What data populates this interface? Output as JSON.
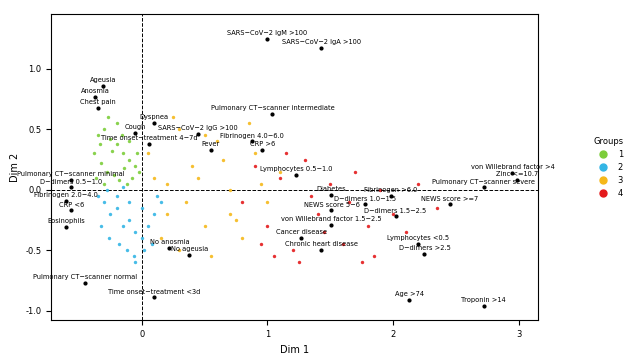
{
  "chart_data": {
    "type": "scatter",
    "x_label": "Dim 1",
    "y_label": "Dim 2",
    "xlim": [
      -0.72,
      3.15
    ],
    "ylim": [
      -1.08,
      1.45
    ],
    "xticks": [
      0,
      1,
      2,
      3
    ],
    "yticks": [
      {
        "value": -1.0,
        "label": "-1.0"
      },
      {
        "value": -0.5,
        "label": "-0.5"
      },
      {
        "value": 0.0,
        "label": "0.0"
      },
      {
        "value": 0.5,
        "label": "0.5"
      },
      {
        "value": 1.0,
        "label": "1.0"
      }
    ],
    "grid": false,
    "legend": "right",
    "legend_title": "Groups",
    "ref_lines": {
      "x": 0,
      "y": 0
    },
    "series": [
      {
        "name": "1",
        "color": "#7CCD3A",
        "x": [
          -0.35,
          -0.3,
          -0.25,
          -0.2,
          -0.15,
          -0.1,
          -0.05,
          -0.38,
          -0.32,
          -0.28,
          -0.22,
          -0.18,
          -0.12,
          -0.08,
          -0.02,
          -0.36,
          -0.3,
          -0.24,
          -0.16,
          -0.1,
          -0.04,
          -0.27,
          -0.2,
          -0.14,
          -0.33
        ],
        "y": [
          0.45,
          0.5,
          0.42,
          0.38,
          0.3,
          0.25,
          0.2,
          0.3,
          0.22,
          0.15,
          0.12,
          0.08,
          0.05,
          0.1,
          0.15,
          0.1,
          0.05,
          0.32,
          0.45,
          0.4,
          0.3,
          0.6,
          0.55,
          0.18,
          0.38
        ]
      },
      {
        "name": "2",
        "color": "#33B5E5",
        "x": [
          -0.35,
          -0.3,
          -0.25,
          -0.2,
          -0.15,
          -0.1,
          -0.05,
          0.0,
          0.05,
          0.1,
          0.15,
          -0.32,
          -0.26,
          -0.18,
          -0.12,
          -0.06,
          0.02,
          0.08,
          -0.28,
          -0.2,
          -0.1,
          0.0,
          0.12,
          -0.15,
          -0.05
        ],
        "y": [
          -0.05,
          -0.1,
          -0.2,
          -0.15,
          -0.3,
          -0.25,
          -0.35,
          -0.4,
          -0.3,
          -0.2,
          -0.1,
          -0.3,
          -0.4,
          -0.45,
          -0.5,
          -0.55,
          -0.5,
          -0.45,
          0.0,
          -0.05,
          -0.1,
          -0.15,
          -0.05,
          0.02,
          -0.6
        ]
      },
      {
        "name": "3",
        "color": "#F5B81A",
        "x": [
          0.05,
          0.1,
          0.2,
          0.3,
          0.4,
          0.5,
          0.6,
          0.7,
          0.8,
          0.9,
          1.0,
          1.1,
          0.15,
          0.25,
          0.35,
          0.45,
          0.55,
          0.65,
          0.75,
          0.85,
          0.95,
          0.3,
          0.5,
          0.7,
          0.2
        ],
        "y": [
          0.3,
          0.1,
          -0.2,
          0.5,
          0.2,
          -0.3,
          0.4,
          0.0,
          -0.4,
          0.3,
          -0.1,
          0.15,
          -0.4,
          0.6,
          -0.1,
          0.1,
          -0.55,
          0.25,
          -0.25,
          0.55,
          0.05,
          -0.5,
          0.45,
          -0.2,
          0.05
        ]
      },
      {
        "name": "4",
        "color": "#E41A1C",
        "x": [
          0.8,
          0.9,
          1.0,
          1.1,
          1.2,
          1.3,
          1.4,
          1.5,
          1.6,
          1.7,
          1.8,
          1.9,
          2.0,
          2.1,
          2.2,
          2.35,
          1.05,
          1.25,
          1.45,
          1.65,
          1.85,
          0.95,
          1.15,
          1.35,
          1.75
        ],
        "y": [
          -0.1,
          0.2,
          -0.3,
          0.1,
          -0.5,
          0.25,
          -0.2,
          0.05,
          -0.45,
          0.15,
          -0.3,
          0.0,
          -0.2,
          -0.35,
          0.05,
          -0.15,
          -0.55,
          -0.6,
          -0.35,
          -0.1,
          -0.55,
          -0.45,
          0.3,
          -0.05,
          -0.6
        ]
      }
    ],
    "annotations": [
      {
        "text": "SARS−CoV−2 IgM >100",
        "x": 1.0,
        "y": 1.25
      },
      {
        "text": "SARS−CoV−2 IgA >100",
        "x": 1.43,
        "y": 1.17
      },
      {
        "text": "Ageusia",
        "x": -0.31,
        "y": 0.86
      },
      {
        "text": "Anosmia",
        "x": -0.37,
        "y": 0.77
      },
      {
        "text": "Chest pain",
        "x": -0.35,
        "y": 0.68
      },
      {
        "text": "Dyspnea",
        "x": 0.1,
        "y": 0.55
      },
      {
        "text": "Cough",
        "x": -0.05,
        "y": 0.47
      },
      {
        "text": "Pulmonary CT−scanner intermediate",
        "x": 1.04,
        "y": 0.63
      },
      {
        "text": "SARS−CoV−2 IgG >100",
        "x": 0.45,
        "y": 0.46
      },
      {
        "text": "Time onset−treatment 4−7d",
        "x": 0.06,
        "y": 0.38
      },
      {
        "text": "Fever",
        "x": 0.55,
        "y": 0.33
      },
      {
        "text": "Fibrinogen 4.0−6.0",
        "x": 0.88,
        "y": 0.4
      },
      {
        "text": "CRP >6",
        "x": 0.96,
        "y": 0.33
      },
      {
        "text": "Lymphocytes 0.5−1.0",
        "x": 1.23,
        "y": 0.12
      },
      {
        "text": "Pulmonary CT−scanner minimal",
        "x": -0.56,
        "y": 0.08
      },
      {
        "text": "D−dimers 0.5−1.0",
        "x": -0.56,
        "y": 0.02
      },
      {
        "text": "Fibrinogen 2.0−4.0",
        "x": -0.6,
        "y": -0.09
      },
      {
        "text": "CRP <6",
        "x": -0.56,
        "y": -0.17
      },
      {
        "text": "Eosinophils",
        "x": -0.6,
        "y": -0.31
      },
      {
        "text": "No anosmia",
        "x": 0.22,
        "y": -0.48
      },
      {
        "text": "No ageusia",
        "x": 0.38,
        "y": -0.54
      },
      {
        "text": "Pulmonary CT−scanner normal",
        "x": -0.45,
        "y": -0.77
      },
      {
        "text": "Time onset−treatment <3d",
        "x": 0.1,
        "y": -0.89
      },
      {
        "text": "Pulmonary CT−scanner severe",
        "x": 2.72,
        "y": 0.02
      },
      {
        "text": "von Willebrand factor >4",
        "x": 2.95,
        "y": 0.14
      },
      {
        "text": "Zinc <=10.7",
        "x": 2.99,
        "y": 0.08
      },
      {
        "text": "Fibrinogen >6.0",
        "x": 1.98,
        "y": -0.05
      },
      {
        "text": "NEWS score >=7",
        "x": 2.45,
        "y": -0.12
      },
      {
        "text": "D−dimers 1.0−1.5",
        "x": 1.78,
        "y": -0.12
      },
      {
        "text": "D−dimers 1.5−2.5",
        "x": 2.02,
        "y": -0.22
      },
      {
        "text": "Diabetes",
        "x": 1.51,
        "y": -0.04
      },
      {
        "text": "NEWS score 5−6",
        "x": 1.51,
        "y": -0.17
      },
      {
        "text": "von Willebrand factor 1.5−2.5",
        "x": 1.51,
        "y": -0.29
      },
      {
        "text": "Cancer disease",
        "x": 1.27,
        "y": -0.4
      },
      {
        "text": "Chronic heart disease",
        "x": 1.43,
        "y": -0.5
      },
      {
        "text": "Lymphocytes <0.5",
        "x": 2.2,
        "y": -0.45
      },
      {
        "text": "D−dimers >2.5",
        "x": 2.25,
        "y": -0.53
      },
      {
        "text": "Age >74",
        "x": 2.13,
        "y": -0.91
      },
      {
        "text": "Troponin >14",
        "x": 2.72,
        "y": -0.96
      }
    ]
  }
}
